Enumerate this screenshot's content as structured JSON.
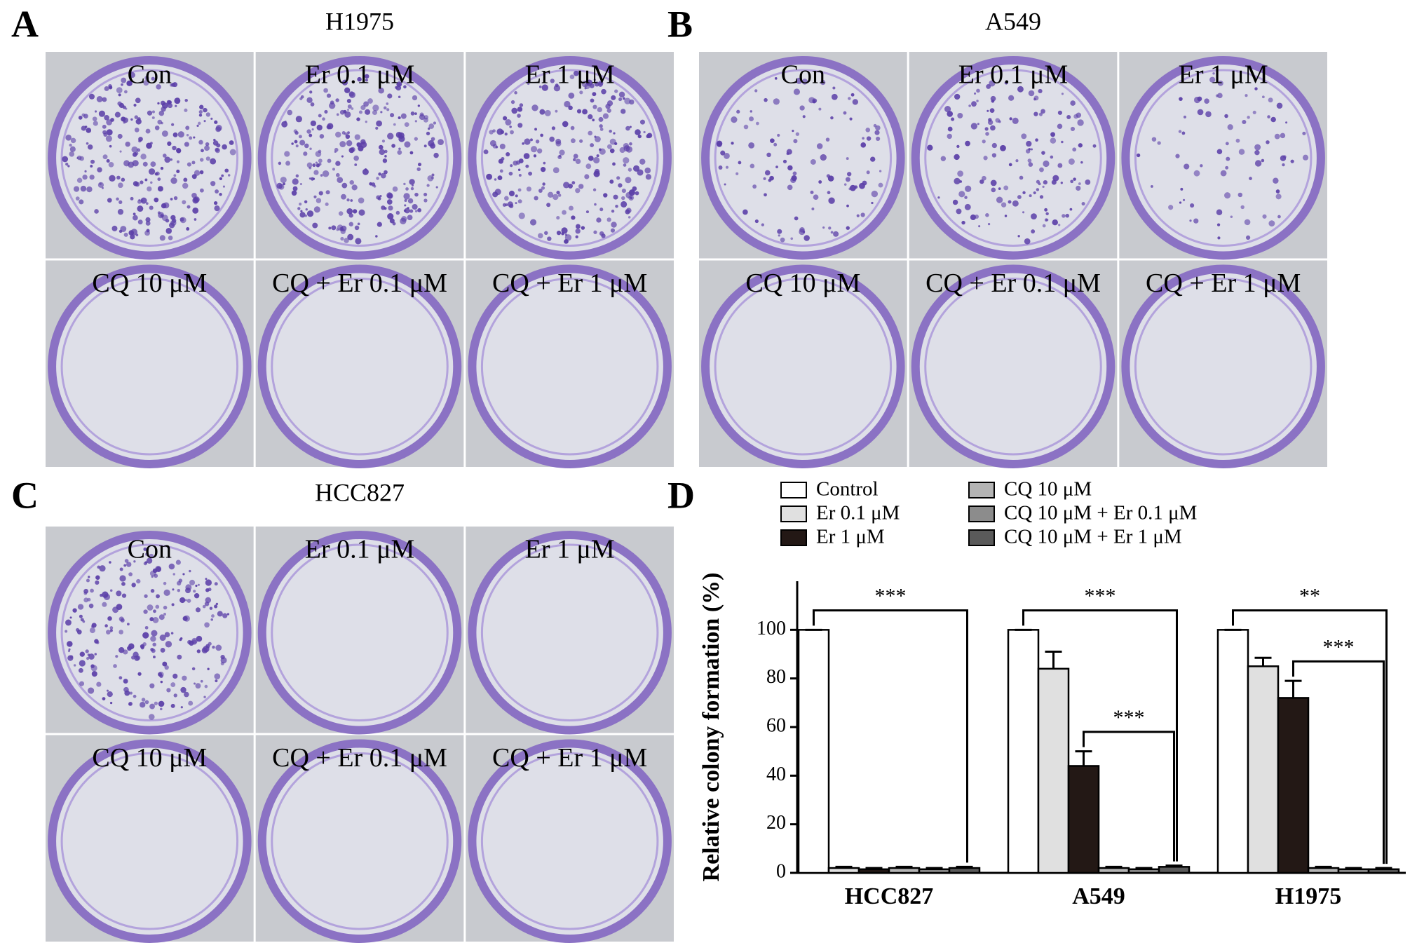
{
  "panels": [
    {
      "letter": "A",
      "title": "H1975",
      "wells": [
        "Con",
        "Er 0.1 μM",
        "Er 1 μM",
        "CQ 10 μM",
        "CQ + Er 0.1 μM",
        "CQ + Er 1 μM"
      ]
    },
    {
      "letter": "B",
      "title": "A549",
      "wells": [
        "Con",
        "Er 0.1 μM",
        "Er 1 μM",
        "CQ 10 μM",
        "CQ + Er 0.1 μM",
        "CQ + Er 1 μM"
      ]
    },
    {
      "letter": "C",
      "title": "HCC827",
      "wells": [
        "Con",
        "Er 0.1 μM",
        "Er 1 μM",
        "CQ 10 μM",
        "CQ + Er 0.1 μM",
        "CQ + Er 1 μM"
      ]
    }
  ],
  "chart_data": {
    "type": "bar",
    "letter": "D",
    "ylabel": "Relative colony formation (%)",
    "categories": [
      "HCC827",
      "A549",
      "H1975"
    ],
    "ylim": [
      0,
      120
    ],
    "yticks": [
      0,
      20,
      40,
      60,
      80,
      100
    ],
    "series": [
      {
        "name": "Control",
        "color": "#ffffff",
        "values": [
          100,
          100,
          100
        ],
        "errors": [
          0,
          0,
          0
        ]
      },
      {
        "name": "Er 0.1 μM",
        "color": "#e0e0e0",
        "values": [
          2,
          84,
          85
        ],
        "errors": [
          0.5,
          7,
          3.5
        ]
      },
      {
        "name": "Er 1 μM",
        "color": "#231815",
        "values": [
          1.5,
          44,
          72
        ],
        "errors": [
          0.5,
          6,
          7
        ]
      },
      {
        "name": "CQ 10 μM",
        "color": "#b4b4b4",
        "values": [
          2,
          2,
          2
        ],
        "errors": [
          0.5,
          0.5,
          0.5
        ]
      },
      {
        "name": "CQ 10 μM + Er 0.1 μM",
        "color": "#8c8c8c",
        "values": [
          1.5,
          1.5,
          1.5
        ],
        "errors": [
          0.5,
          0.5,
          0.5
        ]
      },
      {
        "name": "CQ 10 μM + Er 1 μM",
        "color": "#5a5a5a",
        "values": [
          2,
          2.5,
          1.5
        ],
        "errors": [
          0.5,
          0.5,
          0.5
        ]
      }
    ],
    "annotations": [
      "***",
      "***",
      "***",
      "**",
      "***"
    ]
  }
}
